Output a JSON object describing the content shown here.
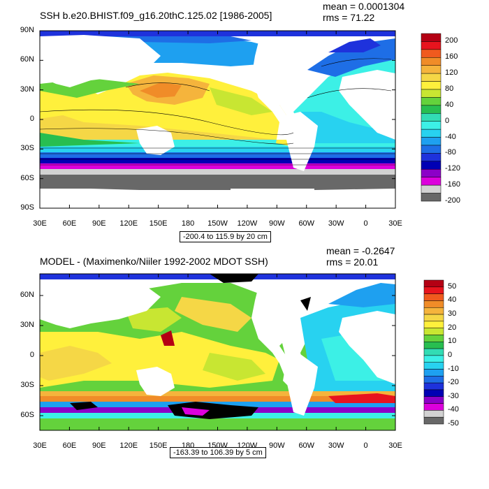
{
  "panels": [
    {
      "title": "SSH b.e20.BHIST.f09_g16.20thC.125.02 [1986-2005]",
      "mean": "mean = 0.0001304",
      "rms": "rms = 71.22",
      "y_ticks": [
        "90N",
        "60N",
        "30N",
        "0",
        "30S",
        "60S",
        "90S"
      ],
      "x_ticks": [
        "30E",
        "60E",
        "90E",
        "120E",
        "150E",
        "180",
        "150W",
        "120W",
        "90W",
        "60W",
        "30W",
        "0",
        "30E"
      ],
      "range_label": "-200.4 to 115.9 by 20 cm",
      "colorbar": {
        "labels": [
          "200",
          "160",
          "120",
          "80",
          "40",
          "0",
          "-40",
          "-80",
          "-120",
          "-160",
          "-200"
        ],
        "colors": [
          "#b40014",
          "#e8141e",
          "#f05a1e",
          "#f08c28",
          "#f5b43c",
          "#f5d746",
          "#fff03c",
          "#c8e632",
          "#64d23c",
          "#28be50",
          "#32dcb4",
          "#3cf0e6",
          "#28d2f0",
          "#1ea0f0",
          "#1e6ee6",
          "#1e32dc",
          "#0000b4",
          "#8c00c8",
          "#dc00dc",
          "#d2d2d2",
          "#686868"
        ]
      }
    },
    {
      "title": "MODEL - (Maximenko/Niiler 1992-2002 MDOT SSH)",
      "mean": "mean = -0.2647",
      "rms": "rms = 20.01",
      "y_ticks": [
        "60N",
        "30N",
        "0",
        "30S",
        "60S"
      ],
      "x_ticks": [
        "30E",
        "60E",
        "90E",
        "120E",
        "150E",
        "180",
        "150W",
        "120W",
        "90W",
        "60W",
        "30W",
        "0",
        "30E"
      ],
      "range_label": "-163.39 to 106.39 by 5 cm",
      "colorbar": {
        "labels": [
          "50",
          "40",
          "30",
          "20",
          "10",
          "0",
          "-10",
          "-20",
          "-30",
          "-40",
          "-50"
        ],
        "colors": [
          "#b40014",
          "#e8141e",
          "#f05a1e",
          "#f08c28",
          "#f5b43c",
          "#f5d746",
          "#fff03c",
          "#c8e632",
          "#64d23c",
          "#28be50",
          "#32dcb4",
          "#3cf0e6",
          "#28d2f0",
          "#1ea0f0",
          "#1e6ee6",
          "#1e32dc",
          "#0000b4",
          "#8c00c8",
          "#dc00dc",
          "#d2d2d2",
          "#686868"
        ]
      }
    }
  ]
}
